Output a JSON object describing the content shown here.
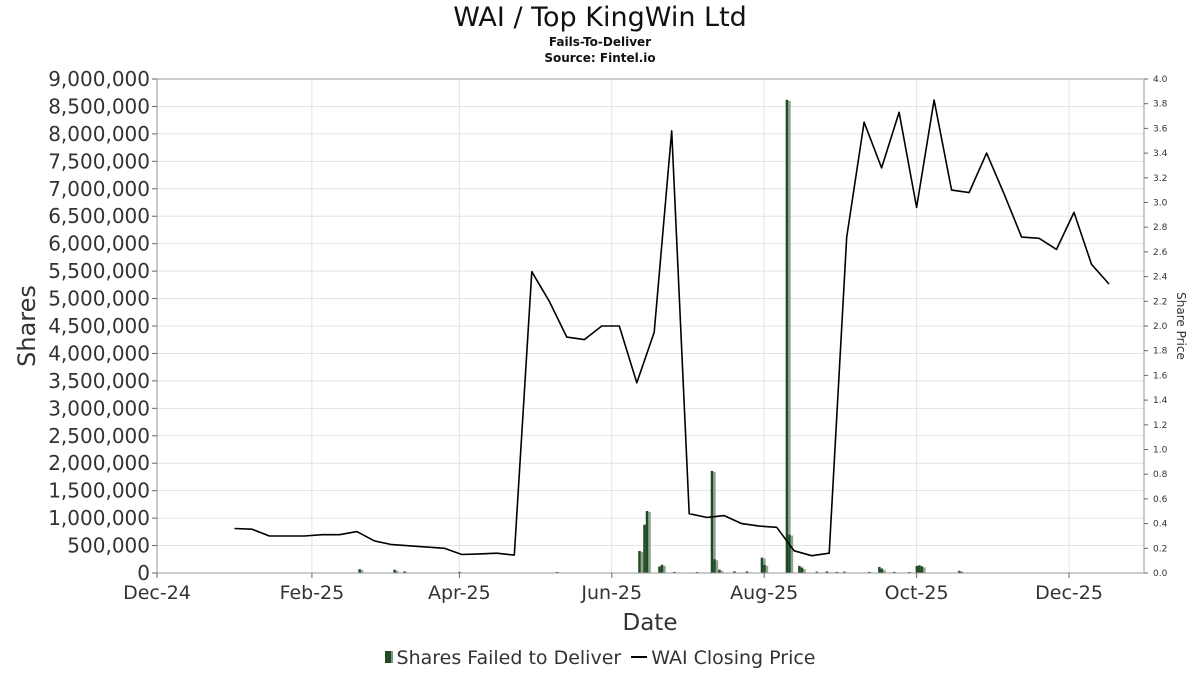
{
  "title": "WAI / Top KingWin Ltd",
  "subtitle": "Fails-To-Deliver",
  "source": "Source: Fintel.io",
  "legend": {
    "bar_label": "Shares Failed to Deliver",
    "line_label": "WAI Closing Price"
  },
  "chart_data": {
    "type": "bar",
    "title": "WAI / Top KingWin Ltd",
    "subtitle": "Fails-To-Deliver",
    "xlabel": "Date",
    "ylabel": "Shares",
    "y2label": "Share Price",
    "x_range": [
      "2024-12-01",
      "2025-12-31"
    ],
    "x_ticks": [
      {
        "date": "2024-12-01",
        "label": "Dec-24"
      },
      {
        "date": "2025-02-01",
        "label": "Feb-25"
      },
      {
        "date": "2025-04-01",
        "label": "Apr-25"
      },
      {
        "date": "2025-06-01",
        "label": "Jun-25"
      },
      {
        "date": "2025-08-01",
        "label": "Aug-25"
      },
      {
        "date": "2025-10-01",
        "label": "Oct-25"
      },
      {
        "date": "2025-12-01",
        "label": "Dec-25"
      }
    ],
    "ylim": [
      0,
      9000000
    ],
    "y_ticks": [
      0,
      500000,
      1000000,
      1500000,
      2000000,
      2500000,
      3000000,
      3500000,
      4000000,
      4500000,
      5000000,
      5500000,
      6000000,
      6500000,
      7000000,
      7500000,
      8000000,
      8500000,
      9000000
    ],
    "y_tick_labels": [
      "0",
      "500,000",
      "1,000,000",
      "1,500,000",
      "2,000,000",
      "2,500,000",
      "3,000,000",
      "3,500,000",
      "4,000,000",
      "4,500,000",
      "5,000,000",
      "5,500,000",
      "6,000,000",
      "6,500,000",
      "7,000,000",
      "7,500,000",
      "8,000,000",
      "8,500,000",
      "9,000,000"
    ],
    "y2lim": [
      0,
      4.0
    ],
    "y2_ticks": [
      0,
      0.2,
      0.4,
      0.6,
      0.8,
      1.0,
      1.2,
      1.4,
      1.6,
      1.8,
      2.0,
      2.2,
      2.4,
      2.6,
      2.8,
      3.0,
      3.2,
      3.4,
      3.6,
      3.8,
      4.0
    ],
    "y2_tick_labels": [
      "0.0",
      "0.2",
      "0.4",
      "0.6",
      "0.8",
      "1.0",
      "1.2",
      "1.4",
      "1.6",
      "1.8",
      "2.0",
      "2.2",
      "2.4",
      "2.6",
      "2.8",
      "3.0",
      "3.2",
      "3.4",
      "3.6",
      "3.8",
      "4.0"
    ],
    "grid": true,
    "legend_position": "bottom",
    "series": [
      {
        "name": "Shares Failed to Deliver",
        "kind": "bar",
        "color": "#1f4a24",
        "shadow_color": "#8fa592",
        "points": [
          {
            "date": "2025-02-20",
            "value": 70000
          },
          {
            "date": "2025-03-06",
            "value": 60000
          },
          {
            "date": "2025-03-10",
            "value": 30000
          },
          {
            "date": "2025-04-01",
            "value": 20000
          },
          {
            "date": "2025-05-10",
            "value": 15000
          },
          {
            "date": "2025-06-12",
            "value": 400000
          },
          {
            "date": "2025-06-14",
            "value": 880000
          },
          {
            "date": "2025-06-15",
            "value": 1130000
          },
          {
            "date": "2025-06-20",
            "value": 120000
          },
          {
            "date": "2025-06-21",
            "value": 150000
          },
          {
            "date": "2025-06-26",
            "value": 20000
          },
          {
            "date": "2025-07-05",
            "value": 15000
          },
          {
            "date": "2025-07-11",
            "value": 1860000
          },
          {
            "date": "2025-07-12",
            "value": 250000
          },
          {
            "date": "2025-07-14",
            "value": 60000
          },
          {
            "date": "2025-07-20",
            "value": 30000
          },
          {
            "date": "2025-07-25",
            "value": 30000
          },
          {
            "date": "2025-07-31",
            "value": 280000
          },
          {
            "date": "2025-08-01",
            "value": 150000
          },
          {
            "date": "2025-08-10",
            "value": 8620000
          },
          {
            "date": "2025-08-11",
            "value": 700000
          },
          {
            "date": "2025-08-15",
            "value": 130000
          },
          {
            "date": "2025-08-16",
            "value": 90000
          },
          {
            "date": "2025-08-22",
            "value": 25000
          },
          {
            "date": "2025-08-26",
            "value": 30000
          },
          {
            "date": "2025-08-30",
            "value": 20000
          },
          {
            "date": "2025-09-02",
            "value": 25000
          },
          {
            "date": "2025-09-12",
            "value": 20000
          },
          {
            "date": "2025-09-16",
            "value": 110000
          },
          {
            "date": "2025-09-17",
            "value": 70000
          },
          {
            "date": "2025-09-22",
            "value": 20000
          },
          {
            "date": "2025-09-28",
            "value": 15000
          },
          {
            "date": "2025-10-01",
            "value": 130000
          },
          {
            "date": "2025-10-02",
            "value": 140000
          },
          {
            "date": "2025-10-03",
            "value": 120000
          },
          {
            "date": "2025-10-18",
            "value": 40000
          },
          {
            "date": "2025-10-19",
            "value": 20000
          }
        ]
      },
      {
        "name": "WAI Closing Price",
        "kind": "line",
        "axis": "right",
        "color": "#000000",
        "points": [
          {
            "date": "2025-01-01",
            "value": 0.36
          },
          {
            "date": "2025-01-08",
            "value": 0.355
          },
          {
            "date": "2025-01-15",
            "value": 0.3
          },
          {
            "date": "2025-01-22",
            "value": 0.3
          },
          {
            "date": "2025-01-29",
            "value": 0.3
          },
          {
            "date": "2025-02-05",
            "value": 0.31
          },
          {
            "date": "2025-02-12",
            "value": 0.31
          },
          {
            "date": "2025-02-19",
            "value": 0.335
          },
          {
            "date": "2025-02-26",
            "value": 0.26
          },
          {
            "date": "2025-03-05",
            "value": 0.23
          },
          {
            "date": "2025-03-12",
            "value": 0.22
          },
          {
            "date": "2025-03-19",
            "value": 0.21
          },
          {
            "date": "2025-03-26",
            "value": 0.2
          },
          {
            "date": "2025-04-02",
            "value": 0.15
          },
          {
            "date": "2025-04-09",
            "value": 0.155
          },
          {
            "date": "2025-04-16",
            "value": 0.16
          },
          {
            "date": "2025-04-23",
            "value": 0.145
          },
          {
            "date": "2025-04-30",
            "value": 2.44
          },
          {
            "date": "2025-05-07",
            "value": 2.2
          },
          {
            "date": "2025-05-14",
            "value": 1.91
          },
          {
            "date": "2025-05-21",
            "value": 1.89
          },
          {
            "date": "2025-05-28",
            "value": 2.0
          },
          {
            "date": "2025-06-04",
            "value": 2.0
          },
          {
            "date": "2025-06-11",
            "value": 1.54
          },
          {
            "date": "2025-06-18",
            "value": 1.95
          },
          {
            "date": "2025-06-25",
            "value": 3.58
          },
          {
            "date": "2025-07-02",
            "value": 0.48
          },
          {
            "date": "2025-07-09",
            "value": 0.45
          },
          {
            "date": "2025-07-16",
            "value": 0.465
          },
          {
            "date": "2025-07-23",
            "value": 0.4
          },
          {
            "date": "2025-07-30",
            "value": 0.38
          },
          {
            "date": "2025-08-06",
            "value": 0.37
          },
          {
            "date": "2025-08-13",
            "value": 0.18
          },
          {
            "date": "2025-08-20",
            "value": 0.14
          },
          {
            "date": "2025-08-27",
            "value": 0.16
          },
          {
            "date": "2025-09-03",
            "value": 2.72
          },
          {
            "date": "2025-09-10",
            "value": 3.65
          },
          {
            "date": "2025-09-17",
            "value": 3.28
          },
          {
            "date": "2025-09-24",
            "value": 3.73
          },
          {
            "date": "2025-10-01",
            "value": 2.96
          },
          {
            "date": "2025-10-08",
            "value": 3.83
          },
          {
            "date": "2025-10-15",
            "value": 3.1
          },
          {
            "date": "2025-10-22",
            "value": 3.08
          },
          {
            "date": "2025-10-29",
            "value": 3.4
          },
          {
            "date": "2025-11-05",
            "value": 3.07
          },
          {
            "date": "2025-11-12",
            "value": 2.72
          },
          {
            "date": "2025-11-19",
            "value": 2.71
          },
          {
            "date": "2025-11-26",
            "value": 2.62
          },
          {
            "date": "2025-12-03",
            "value": 2.92
          },
          {
            "date": "2025-12-10",
            "value": 2.5
          },
          {
            "date": "2025-12-17",
            "value": 2.34
          }
        ]
      }
    ]
  }
}
